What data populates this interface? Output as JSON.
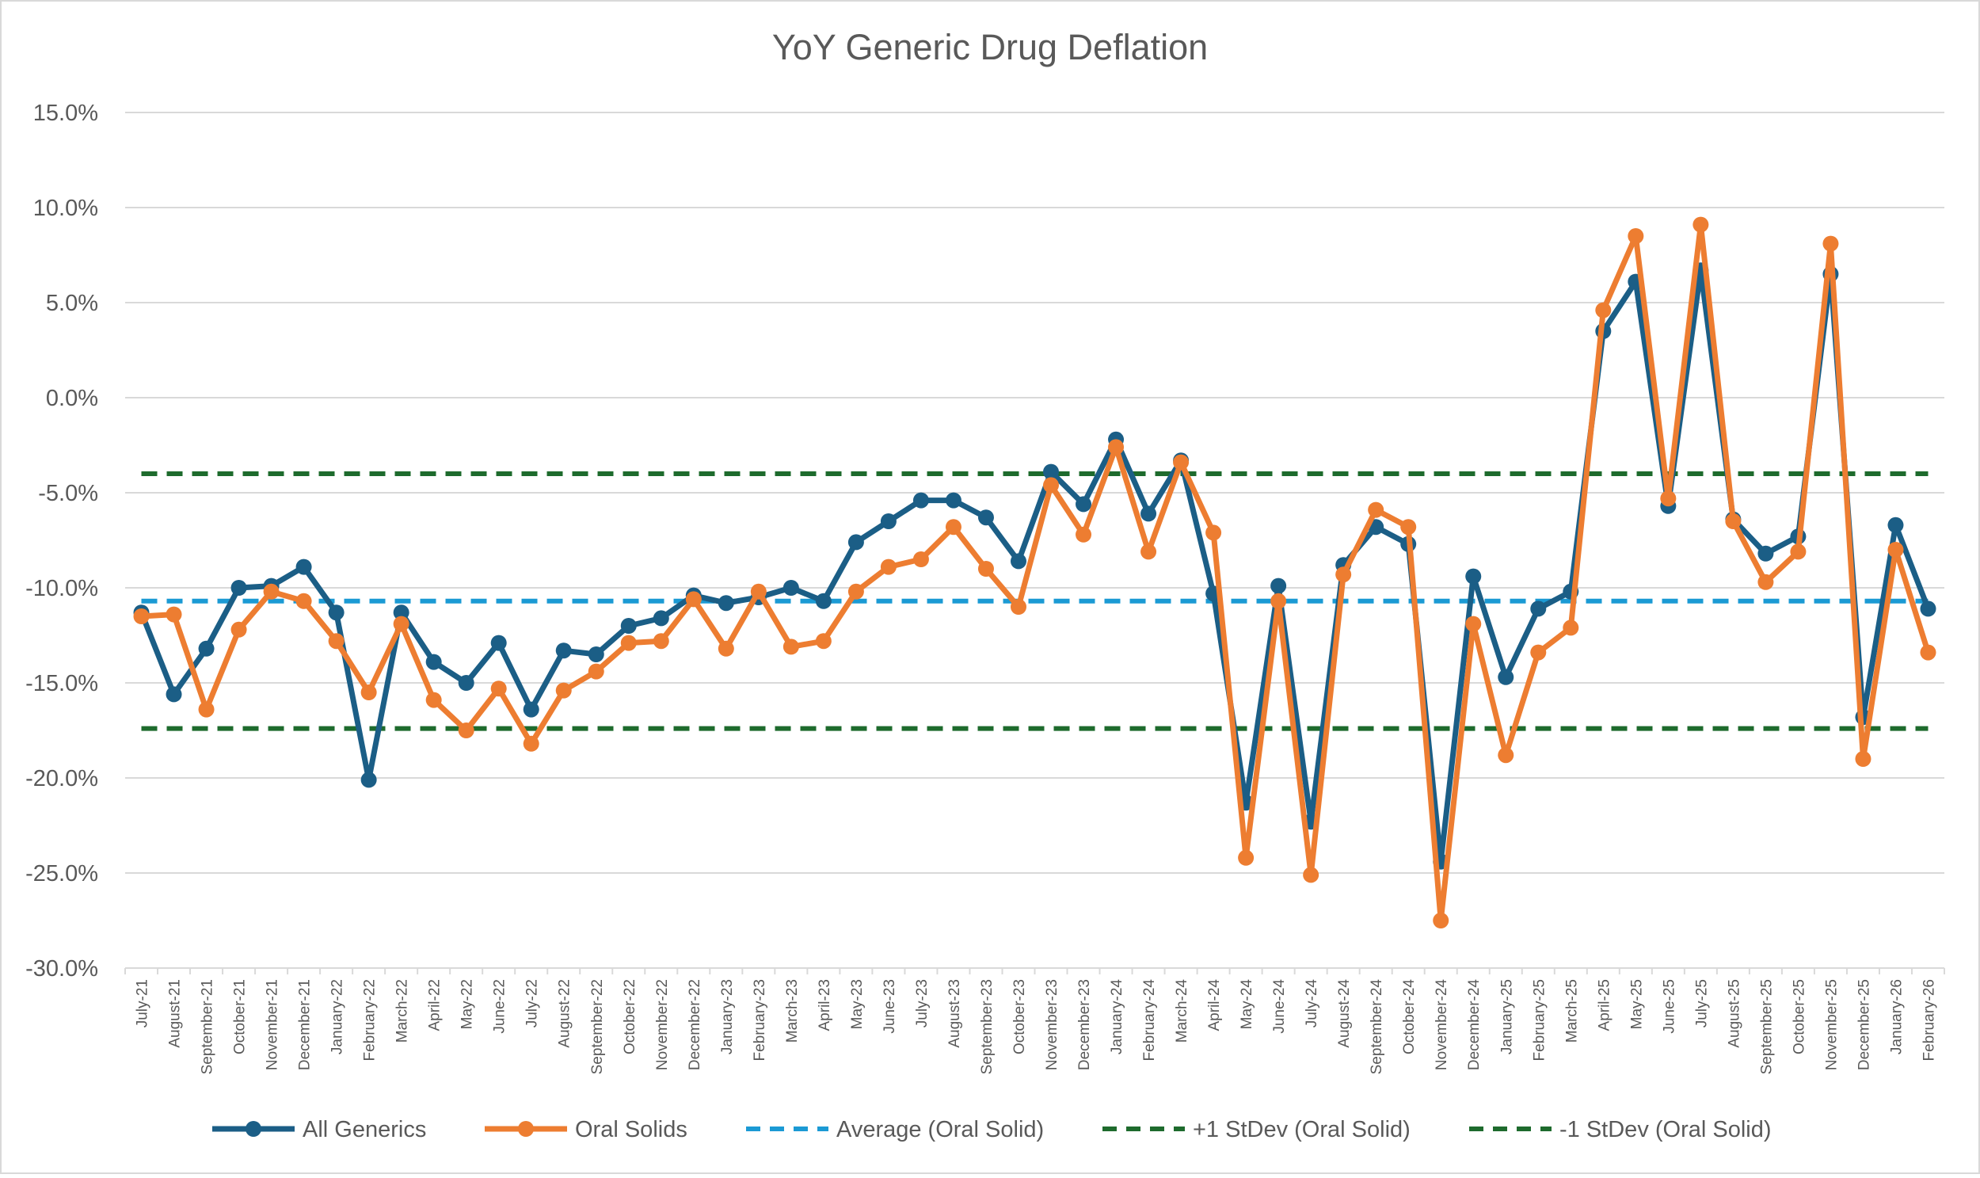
{
  "chart_data": {
    "type": "line",
    "title": "YoY Generic Drug Deflation",
    "xlabel": "",
    "ylabel": "",
    "ylim": [
      -30,
      15
    ],
    "y_tick_step": 5,
    "y_tick_labels": [
      "15.0%",
      "10.0%",
      "5.0%",
      "0.0%",
      "-5.0%",
      "-10.0%",
      "-15.0%",
      "-20.0%",
      "-25.0%",
      "-30.0%"
    ],
    "grid": true,
    "legend_position": "bottom",
    "categories": [
      "July-21",
      "August-21",
      "September-21",
      "October-21",
      "November-21",
      "December-21",
      "January-22",
      "February-22",
      "March-22",
      "April-22",
      "May-22",
      "June-22",
      "July-22",
      "August-22",
      "September-22",
      "October-22",
      "November-22",
      "December-22",
      "January-23",
      "February-23",
      "March-23",
      "April-23",
      "May-23",
      "June-23",
      "July-23",
      "August-23",
      "September-23",
      "October-23",
      "November-23",
      "December-23",
      "January-24",
      "February-24",
      "March-24",
      "April-24",
      "May-24",
      "June-24",
      "July-24",
      "August-24",
      "September-24",
      "October-24",
      "November-24",
      "December-24",
      "January-25",
      "February-25",
      "March-25",
      "April-25",
      "May-25",
      "June-25",
      "July-25",
      "August-25",
      "September-25",
      "October-25",
      "November-25",
      "December-25",
      "January-26",
      "February-26"
    ],
    "series": [
      {
        "name": "All Generics",
        "color": "#1B5E86",
        "style": "solid-marker",
        "values": [
          -11.3,
          -15.6,
          -13.2,
          -10.0,
          -9.9,
          -8.9,
          -11.3,
          -20.1,
          -11.3,
          -13.9,
          -15.0,
          -12.9,
          -16.4,
          -13.3,
          -13.5,
          -12.0,
          -11.6,
          -10.4,
          -10.8,
          -10.5,
          -10.0,
          -10.7,
          -7.6,
          -6.5,
          -5.4,
          -5.4,
          -6.3,
          -8.6,
          -3.9,
          -5.6,
          -2.2,
          -6.1,
          -3.3,
          -10.3,
          -21.3,
          -9.9,
          -22.3,
          -8.8,
          -6.8,
          -7.7,
          -24.4,
          -9.4,
          -14.7,
          -11.1,
          -10.2,
          3.5,
          6.1,
          -5.7,
          6.7,
          -6.4,
          -8.2,
          -7.3,
          6.5,
          -16.8,
          -6.7,
          -11.1
        ]
      },
      {
        "name": "Oral Solids",
        "color": "#ED7D31",
        "style": "solid-marker",
        "values": [
          -11.5,
          -11.4,
          -16.4,
          -12.2,
          -10.2,
          -10.7,
          -12.8,
          -15.5,
          -11.9,
          -15.9,
          -17.5,
          -15.3,
          -18.2,
          -15.4,
          -14.4,
          -12.9,
          -12.8,
          -10.6,
          -13.2,
          -10.2,
          -13.1,
          -12.8,
          -10.2,
          -8.9,
          -8.5,
          -6.8,
          -9.0,
          -11.0,
          -4.6,
          -7.2,
          -2.6,
          -8.1,
          -3.4,
          -7.1,
          -24.2,
          -10.7,
          -25.1,
          -9.3,
          -5.9,
          -6.8,
          -27.5,
          -11.9,
          -18.8,
          -13.4,
          -12.1,
          4.6,
          8.5,
          -5.3,
          9.1,
          -6.5,
          -9.7,
          -8.1,
          8.1,
          -19.0,
          -8.0,
          -13.4
        ]
      },
      {
        "name": "Average (Oral Solid)",
        "color": "#1B9AD4",
        "style": "dashed",
        "value": -10.7
      },
      {
        "name": "+1 StDev (Oral Solid)",
        "color": "#1E6B2D",
        "style": "dashed",
        "value": -4.0
      },
      {
        "name": "-1 StDev (Oral Solid)",
        "color": "#1E6B2D",
        "style": "dashed",
        "value": -17.4
      }
    ],
    "colors": {
      "gridline": "#D9D9D9",
      "axis_text": "#595959",
      "title_text": "#595959",
      "background": "#FFFFFF",
      "border": "#D9D9D9"
    }
  }
}
